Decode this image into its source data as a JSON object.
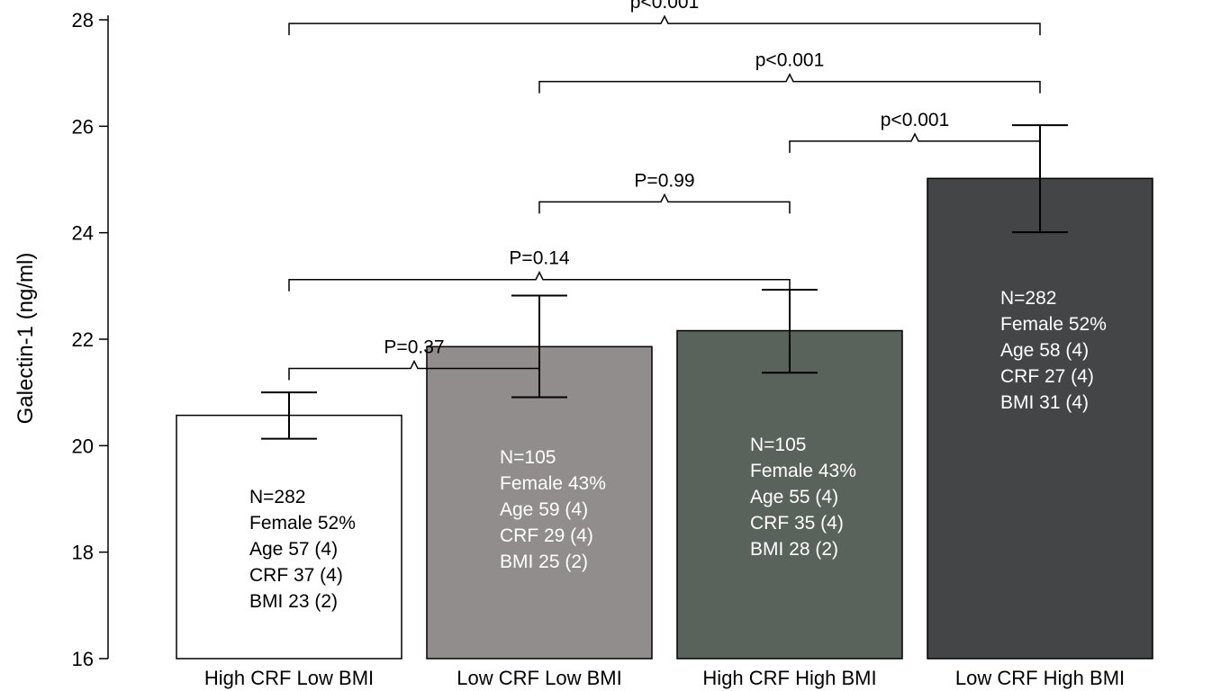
{
  "chart_data": {
    "type": "bar",
    "ylabel": "Galectin-1 (ng/ml)",
    "ylim": [
      16,
      28
    ],
    "yticks": [
      16,
      18,
      20,
      22,
      24,
      26,
      28
    ],
    "categories": [
      "High CRF Low BMI",
      "Low CRF Low BMI",
      "High CRF High BMI",
      "Low CRF High BMI"
    ],
    "values": [
      20.57,
      21.86,
      22.16,
      25.02
    ],
    "error_low": [
      20.13,
      20.91,
      21.37,
      24.01
    ],
    "error_high": [
      21.0,
      22.82,
      22.93,
      26.02
    ],
    "colors": [
      "#ffffff",
      "#918d8c",
      "#59635c",
      "#444547"
    ],
    "bar_annotations": [
      [
        "N=282",
        "Female 52%",
        "Age 57 (4)",
        "CRF 37 (4)",
        "BMI 23 (2)"
      ],
      [
        "N=105",
        "Female 43%",
        "Age 59 (4)",
        "CRF 29 (4)",
        "BMI 25 (2)"
      ],
      [
        "N=105",
        "Female 43%",
        "Age 55 (4)",
        "CRF 35 (4)",
        "BMI 28 (2)"
      ],
      [
        "N=282",
        "Female 52%",
        "Age 58 (4)",
        "CRF 27 (4)",
        "BMI 31 (4)"
      ]
    ],
    "comparisons": [
      {
        "from": 0,
        "to": 1,
        "label": "P=0.37",
        "level": 21.45
      },
      {
        "from": 0,
        "to": 2,
        "label": "P=0.14",
        "level": 23.12
      },
      {
        "from": 1,
        "to": 2,
        "label": "P=0.99",
        "level": 24.58
      },
      {
        "from": 2,
        "to": 3,
        "label": "p<0.001",
        "level": 25.72
      },
      {
        "from": 1,
        "to": 3,
        "label": "p<0.001",
        "level": 26.84
      },
      {
        "from": 0,
        "to": 3,
        "label": "p<0.001",
        "level": 27.93
      }
    ],
    "grid": false,
    "legend": "none"
  }
}
